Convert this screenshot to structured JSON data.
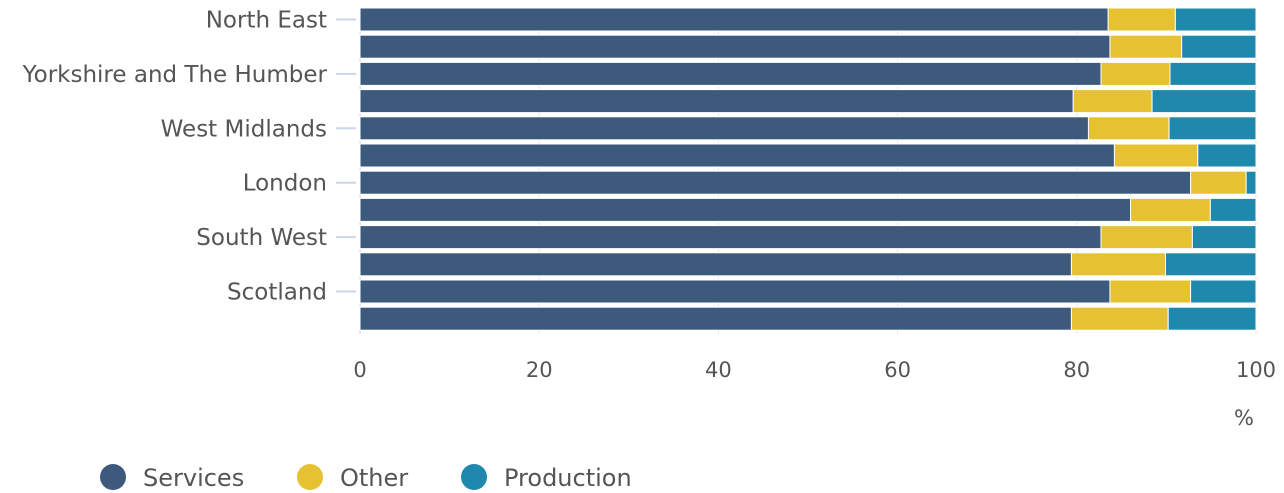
{
  "chart_data": {
    "type": "bar",
    "orientation": "horizontal",
    "stacked": true,
    "unit": "%",
    "xlim": [
      0,
      100
    ],
    "x_ticks": [
      "0",
      "20",
      "40",
      "60",
      "80",
      "100"
    ],
    "categories": [
      "North East",
      "",
      "Yorkshire and The Humber",
      "",
      "West Midlands",
      "",
      "London",
      "",
      "South West",
      "",
      "Scotland",
      ""
    ],
    "series": [
      {
        "name": "Services",
        "color": "#3d5a7c",
        "values": [
          83.5,
          83.7,
          82.7,
          79.6,
          81.3,
          84.2,
          92.7,
          86.0,
          82.7,
          79.4,
          83.7,
          79.4
        ]
      },
      {
        "name": "Other",
        "color": "#e6c233",
        "values": [
          7.5,
          8.0,
          7.7,
          8.8,
          9.0,
          9.3,
          6.2,
          8.9,
          10.2,
          10.5,
          9.0,
          10.8
        ]
      },
      {
        "name": "Production",
        "color": "#1e88ad",
        "values": [
          9.0,
          8.3,
          9.6,
          11.6,
          9.7,
          6.5,
          1.1,
          5.1,
          7.1,
          10.1,
          7.3,
          9.8
        ]
      }
    ],
    "legend_position": "bottom-left",
    "grid": true
  }
}
